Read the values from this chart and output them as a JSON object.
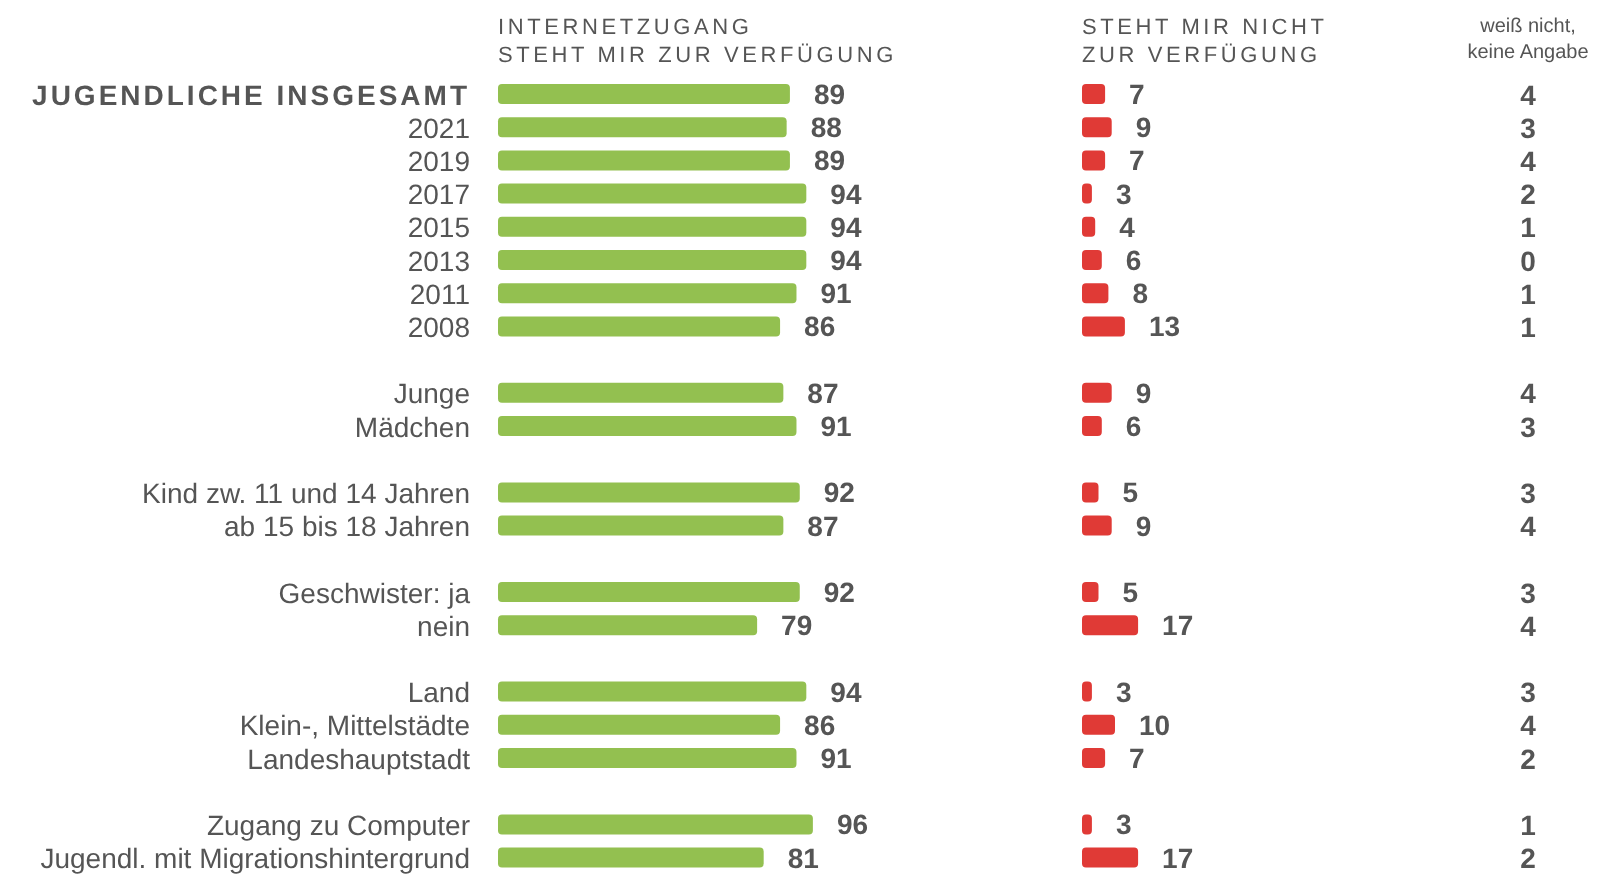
{
  "chart_data": [
    {
      "type": "bar",
      "orientation": "horizontal",
      "title": "INTERNETZUGANG\nSTEHT MIR ZUR VERFÜGUNG",
      "categories": [
        "JUGENDLICHE INSGESAMT",
        "2021",
        "2019",
        "2017",
        "2015",
        "2013",
        "2011",
        "2008",
        null,
        "Junge",
        "Mädchen",
        null,
        "Kind zw. 11 und 14 Jahren",
        "ab 15 bis 18 Jahren",
        null,
        "Geschwister: ja",
        "nein",
        null,
        "Land",
        "Klein-, Mittelstädte",
        "Landeshauptstadt",
        null,
        "Zugang zu Computer",
        "Jugendl. mit Migrationshintergrund"
      ],
      "values": [
        89,
        88,
        89,
        94,
        94,
        94,
        91,
        86,
        null,
        87,
        91,
        null,
        92,
        87,
        null,
        92,
        79,
        null,
        94,
        86,
        91,
        null,
        96,
        81
      ],
      "color": "#93c050",
      "tick_labels": "y",
      "data_labels": true
    },
    {
      "type": "bar",
      "orientation": "horizontal",
      "title": "STEHT MIR NICHT\nZUR VERFÜGUNG",
      "values": [
        7,
        9,
        7,
        3,
        4,
        6,
        8,
        13,
        null,
        9,
        6,
        null,
        5,
        9,
        null,
        5,
        17,
        null,
        3,
        10,
        7,
        null,
        3,
        17
      ],
      "color": "#e03a36",
      "tick_labels": false,
      "data_labels": true
    },
    {
      "type": "other",
      "title": "weiß nicht,\nkeine Angabe",
      "values": [
        4,
        3,
        4,
        2,
        1,
        0,
        1,
        1,
        null,
        4,
        3,
        null,
        3,
        4,
        null,
        3,
        4,
        null,
        3,
        4,
        2,
        null,
        1,
        2
      ],
      "data_labels": true
    }
  ]
}
